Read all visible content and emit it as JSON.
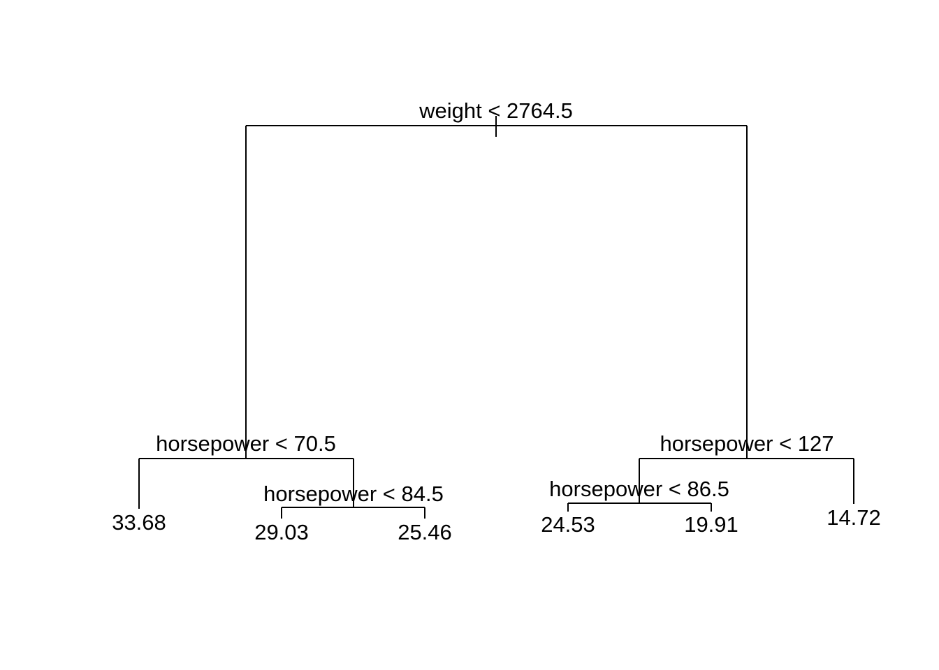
{
  "tree": {
    "root": {
      "label": "weight < 2764.5",
      "left": {
        "label": "horsepower < 70.5",
        "left": {
          "leaf": "33.68"
        },
        "right": {
          "label": "horsepower < 84.5",
          "left": {
            "leaf": "29.03"
          },
          "right": {
            "leaf": "25.46"
          }
        }
      },
      "right": {
        "label": "horsepower < 127",
        "left": {
          "label": "horsepower < 86.5",
          "left": {
            "leaf": "24.53"
          },
          "right": {
            "leaf": "19.91"
          }
        },
        "right": {
          "leaf": "14.72"
        }
      }
    }
  },
  "colors": {
    "line": "#000000",
    "background": "#ffffff"
  }
}
